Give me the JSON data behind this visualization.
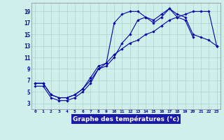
{
  "xlabel": "Graphe des températures (°c)",
  "bg_color": "#d0eeea",
  "grid_color": "#aad4ce",
  "line_color": "#0000aa",
  "tick_color": "#0000aa",
  "x_ticks": [
    0,
    1,
    2,
    3,
    4,
    5,
    6,
    7,
    8,
    9,
    10,
    11,
    12,
    13,
    14,
    15,
    16,
    17,
    18,
    19,
    20,
    21,
    22,
    23
  ],
  "y_ticks": [
    3,
    5,
    7,
    9,
    11,
    13,
    15,
    17,
    19
  ],
  "ylim": [
    2.0,
    20.5
  ],
  "xlim": [
    -0.5,
    23.5
  ],
  "line1_x": [
    0,
    1,
    2,
    3,
    4,
    5,
    6,
    7,
    8,
    9,
    10,
    11,
    12,
    13,
    14,
    15,
    16,
    17,
    18,
    19,
    20,
    21,
    22,
    23
  ],
  "line1_y": [
    6.5,
    6.5,
    4.5,
    4.0,
    4.0,
    4.5,
    5.5,
    7.5,
    9.5,
    10.0,
    17.0,
    18.5,
    19.0,
    19.0,
    18.0,
    17.5,
    18.5,
    19.5,
    18.5,
    18.0,
    15.0,
    14.5,
    14.0,
    13.0
  ],
  "line2_x": [
    0,
    1,
    2,
    3,
    4,
    5,
    6,
    7,
    8,
    9,
    10,
    11,
    12,
    13,
    14,
    15,
    16,
    17,
    18,
    19,
    20
  ],
  "line2_y": [
    6.0,
    6.0,
    4.0,
    3.5,
    3.5,
    4.0,
    5.0,
    6.5,
    9.0,
    9.5,
    11.0,
    13.5,
    15.0,
    17.5,
    18.0,
    17.0,
    18.0,
    19.5,
    18.0,
    17.5,
    14.5
  ],
  "line3_x": [
    0,
    1,
    2,
    3,
    4,
    5,
    6,
    7,
    8,
    9,
    10,
    11,
    12,
    13,
    14,
    15,
    16,
    17,
    18,
    19,
    20,
    21,
    22,
    23
  ],
  "line3_y": [
    6.5,
    6.5,
    4.5,
    4.0,
    4.0,
    4.5,
    5.5,
    7.0,
    9.0,
    10.0,
    11.5,
    12.5,
    13.5,
    14.0,
    15.0,
    15.5,
    16.5,
    17.5,
    18.0,
    18.5,
    19.0,
    19.0,
    19.0,
    13.0
  ]
}
